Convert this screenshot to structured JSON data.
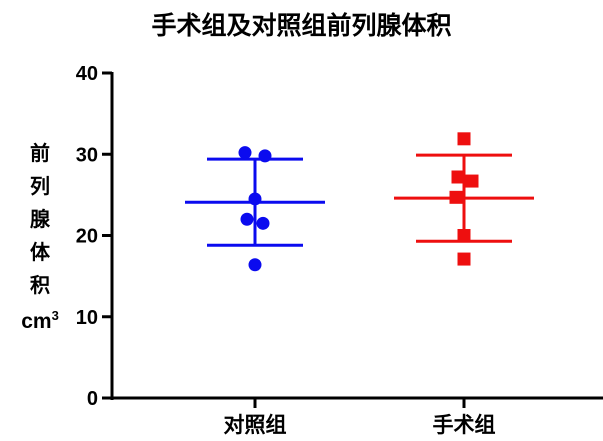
{
  "chart_data": {
    "type": "scatter",
    "title": "手术组及对照组前列腺体积",
    "ylabel_chars": [
      "前",
      "列",
      "腺",
      "体",
      "积"
    ],
    "ylabel_unit": "cm",
    "ylabel_unit_sup": "3",
    "ylim": [
      0,
      40
    ],
    "yticks": [
      0,
      10,
      20,
      30,
      40
    ],
    "categories": [
      "对照组",
      "手术组"
    ],
    "grid": false,
    "series": [
      {
        "category": "对照组",
        "color": "#0b0bef",
        "marker": "circle",
        "values": [
          30.2,
          29.8,
          24.5,
          22.0,
          21.5,
          16.4
        ],
        "mean": 24.1,
        "sd_upper": 29.4,
        "sd_lower": 18.8
      },
      {
        "category": "手术组",
        "color": "#ee0f0f",
        "marker": "square",
        "values": [
          31.9,
          27.2,
          26.7,
          24.7,
          20.0,
          17.1
        ],
        "mean": 24.6,
        "sd_upper": 29.9,
        "sd_lower": 19.3
      }
    ]
  }
}
